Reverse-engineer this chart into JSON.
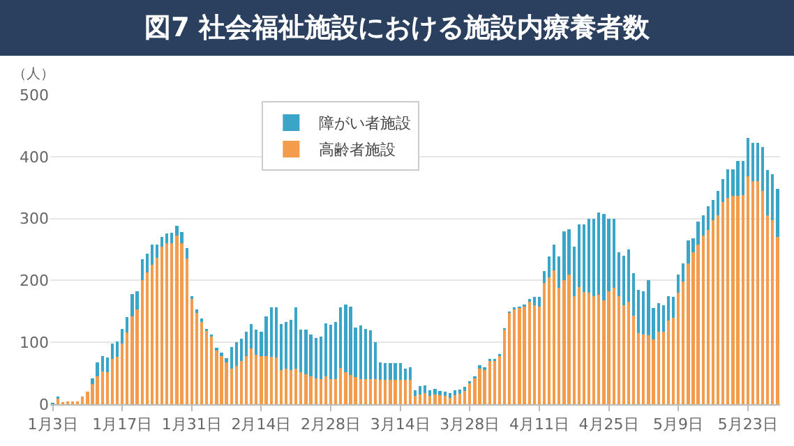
{
  "chart_data": {
    "type": "bar",
    "title": "図7 社会福祉施設における施設内療養者数",
    "ylabel": "（人）",
    "categories": [
      "1月3日",
      null,
      null,
      null,
      null,
      null,
      null,
      null,
      null,
      null,
      null,
      null,
      null,
      null,
      "1月17日",
      null,
      null,
      null,
      null,
      null,
      null,
      null,
      null,
      null,
      null,
      null,
      null,
      null,
      "1月31日",
      null,
      null,
      null,
      null,
      null,
      null,
      null,
      null,
      null,
      null,
      null,
      null,
      null,
      "2月14日",
      null,
      null,
      null,
      null,
      null,
      null,
      null,
      null,
      null,
      null,
      null,
      null,
      null,
      "2月28日",
      null,
      null,
      null,
      null,
      null,
      null,
      null,
      null,
      null,
      null,
      null,
      null,
      null,
      "3月14日",
      null,
      null,
      null,
      null,
      null,
      null,
      null,
      null,
      null,
      null,
      null,
      null,
      null,
      "3月28日",
      null,
      null,
      null,
      null,
      null,
      null,
      null,
      null,
      null,
      null,
      null,
      null,
      null,
      "4月11日",
      null,
      null,
      null,
      null,
      null,
      null,
      null,
      null,
      null,
      null,
      null,
      null,
      null,
      "4月25日",
      null,
      null,
      null,
      null,
      null,
      null,
      null,
      null,
      null,
      null,
      null,
      null,
      null,
      "5月9日",
      null,
      null,
      null,
      null,
      null,
      null,
      null,
      null,
      null,
      null,
      null,
      null,
      null,
      "5月23日",
      null,
      null,
      null,
      null,
      null,
      null
    ],
    "stacked": true,
    "series": [
      {
        "name": "高齢者施設",
        "color": "#f39c4c",
        "values": [
          0,
          9,
          3,
          4,
          4,
          4,
          12,
          20,
          33,
          45,
          53,
          52,
          73,
          77,
          98,
          116,
          142,
          153,
          201,
          213,
          225,
          236,
          255,
          260,
          260,
          272,
          260,
          235,
          170,
          147,
          133,
          118,
          109,
          87,
          78,
          68,
          58,
          62,
          70,
          78,
          90,
          80,
          78,
          78,
          77,
          76,
          55,
          57,
          55,
          57,
          52,
          48,
          45,
          42,
          40,
          45,
          40,
          41,
          59,
          52,
          47,
          44,
          41,
          41,
          40,
          40,
          39,
          39,
          39,
          39,
          39,
          39,
          39,
          13,
          16,
          18,
          14,
          16,
          15,
          13,
          10,
          15,
          17,
          21,
          34,
          42,
          58,
          55,
          70,
          70,
          78,
          120,
          147,
          153,
          155,
          158,
          166,
          160,
          158,
          196,
          205,
          216,
          188,
          200,
          210,
          175,
          189,
          181,
          180,
          175,
          177,
          168,
          183,
          188,
          175,
          160,
          165,
          143,
          115,
          113,
          112,
          105,
          117,
          117,
          135,
          140,
          180,
          198,
          228,
          245,
          258,
          272,
          282,
          297,
          305,
          327,
          333,
          337,
          337,
          338,
          368,
          360,
          360,
          345,
          305,
          297,
          270
        ]
      },
      {
        "name": "障がい者施設",
        "color": "#3aa5c6",
        "values": [
          2,
          3,
          0,
          0,
          0,
          0,
          0,
          0,
          9,
          23,
          25,
          24,
          25,
          24,
          24,
          25,
          36,
          30,
          33,
          30,
          33,
          22,
          15,
          16,
          17,
          16,
          18,
          17,
          5,
          6,
          5,
          4,
          4,
          4,
          5,
          6,
          34,
          38,
          36,
          39,
          40,
          41,
          39,
          64,
          79,
          80,
          75,
          76,
          81,
          100,
          69,
          73,
          68,
          65,
          69,
          86,
          88,
          92,
          97,
          109,
          111,
          80,
          86,
          81,
          79,
          60,
          29,
          27,
          28,
          27,
          27,
          18,
          21,
          10,
          13,
          12,
          9,
          9,
          6,
          7,
          8,
          8,
          7,
          7,
          3,
          3,
          5,
          5,
          3,
          3,
          3,
          3,
          3,
          3,
          3,
          3,
          4,
          13,
          15,
          19,
          34,
          42,
          51,
          79,
          73,
          79,
          101,
          109,
          120,
          125,
          133,
          140,
          117,
          112,
          70,
          80,
          85,
          69,
          70,
          70,
          88,
          50,
          46,
          43,
          40,
          33,
          30,
          30,
          37,
          23,
          37,
          33,
          38,
          33,
          40,
          37,
          47,
          43,
          56,
          55,
          62,
          62,
          62,
          70,
          73,
          75,
          78
        ]
      }
    ],
    "ylim": [
      0,
      500
    ],
    "yticks": [
      0,
      100,
      200,
      300,
      400,
      500
    ],
    "grid": "y",
    "legend": "top left"
  }
}
